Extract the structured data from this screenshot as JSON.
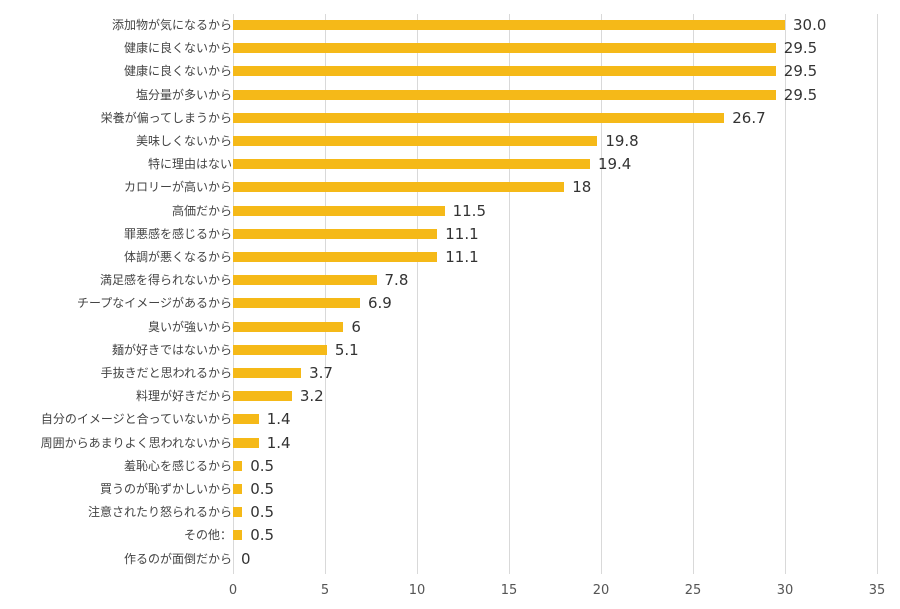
{
  "chart_data": {
    "type": "bar",
    "orientation": "horizontal",
    "title": "",
    "xlabel": "",
    "ylabel": "",
    "xlim": [
      0,
      35
    ],
    "x_ticks": [
      0,
      5,
      10,
      15,
      20,
      25,
      30,
      35
    ],
    "grid": true,
    "legend": null,
    "bar_color": "#f5b918",
    "categories": [
      "添加物が気になるから",
      "健康に良くないから",
      "健康に良くないから",
      "塩分量が多いから",
      "栄養が偏ってしまうから",
      "美味しくないから",
      "特に理由はない",
      "カロリーが高いから",
      "高価だから",
      "罪悪感を感じるから",
      "体調が悪くなるから",
      "満足感を得られないから",
      "チープなイメージがあるから",
      "臭いが強いから",
      "麺が好きではないから",
      "手抜きだと思われるから",
      "料理が好きだから",
      "自分のイメージと合っていないから",
      "周囲からあまりよく思われないから",
      "羞恥心を感じるから",
      "買うのが恥ずかしいから",
      "注意されたり怒られるから",
      "その他：",
      "作るのが面倒だから"
    ],
    "values": [
      30.0,
      29.5,
      29.5,
      29.5,
      26.7,
      19.8,
      19.4,
      18,
      11.5,
      11.1,
      11.1,
      7.8,
      6.9,
      6,
      5.1,
      3.7,
      3.2,
      1.4,
      1.4,
      0.5,
      0.5,
      0.5,
      0.5,
      0
    ],
    "value_labels": [
      "30.0",
      "29.5",
      "29.5",
      "29.5",
      "26.7",
      "19.8",
      "19.4",
      "18",
      "11.5",
      "11.1",
      "11.1",
      "7.8",
      "6.9",
      "6",
      "5.1",
      "3.7",
      "3.2",
      "1.4",
      "1.4",
      "0.5",
      "0.5",
      "0.5",
      "0.5",
      "0"
    ]
  }
}
